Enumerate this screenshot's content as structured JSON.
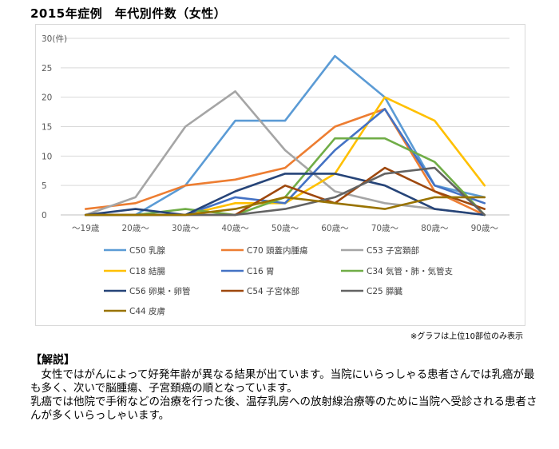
{
  "page_title": "2015年症例　年代別件数（女性）",
  "note": "※グラフは上位10部位のみ表示",
  "explanation": {
    "heading": "【解説】",
    "paragraph1": "女性ではがんによって好発年齢が異なる結果が出ています。当院にいらっしゃる患者さんでは乳癌が最も多く、次いで脳腫瘍、子宮頚癌の順となっています。",
    "paragraph2": "乳癌では他院で手術などの治療を行った後、温存乳房への放射線治療等のために当院へ受診される患者さんが多くいらっしゃいます。"
  },
  "chart_data": {
    "type": "line",
    "unit_label": "(件)",
    "categories": [
      "～19歳",
      "20歳～",
      "30歳～",
      "40歳～",
      "50歳～",
      "60歳～",
      "70歳～",
      "80歳～",
      "90歳～"
    ],
    "ylim": [
      0,
      30
    ],
    "yticks": [
      0,
      5,
      10,
      15,
      20,
      25,
      30
    ],
    "grid": true,
    "legend_position": "bottom",
    "series": [
      {
        "name": "C50 乳腺",
        "color": "#5B9BD5",
        "values": [
          0,
          0,
          5,
          16,
          16,
          27,
          20,
          5,
          3
        ]
      },
      {
        "name": "C70 頭蓋内腫瘍",
        "color": "#ED7D31",
        "values": [
          1,
          2,
          5,
          6,
          8,
          15,
          18,
          4,
          0
        ]
      },
      {
        "name": "C53 子宮頚部",
        "color": "#A5A5A5",
        "values": [
          0,
          3,
          15,
          21,
          11,
          4,
          2,
          1,
          0
        ]
      },
      {
        "name": "C18 結腸",
        "color": "#FFC000",
        "values": [
          0,
          0,
          0,
          2,
          2,
          7,
          20,
          16,
          5
        ]
      },
      {
        "name": "C16 胃",
        "color": "#4472C4",
        "values": [
          0,
          0,
          0,
          3,
          2,
          11,
          18,
          5,
          2
        ]
      },
      {
        "name": "C34 気管・肺・気管支",
        "color": "#70AD47",
        "values": [
          0,
          0,
          1,
          0,
          3,
          13,
          13,
          9,
          0
        ]
      },
      {
        "name": "C56 卵巣・卵管",
        "color": "#264478",
        "values": [
          0,
          1,
          0,
          4,
          7,
          7,
          5,
          1,
          0
        ]
      },
      {
        "name": "C54 子宮体部",
        "color": "#9E480E",
        "values": [
          0,
          0,
          0,
          0,
          5,
          2,
          8,
          4,
          1
        ]
      },
      {
        "name": "C25 膵臓",
        "color": "#636363",
        "values": [
          0,
          0,
          0,
          0,
          1,
          3,
          7,
          8,
          0
        ]
      },
      {
        "name": "C44 皮膚",
        "color": "#997300",
        "values": [
          0,
          0,
          0,
          1,
          3,
          2,
          1,
          3,
          3
        ]
      }
    ]
  }
}
